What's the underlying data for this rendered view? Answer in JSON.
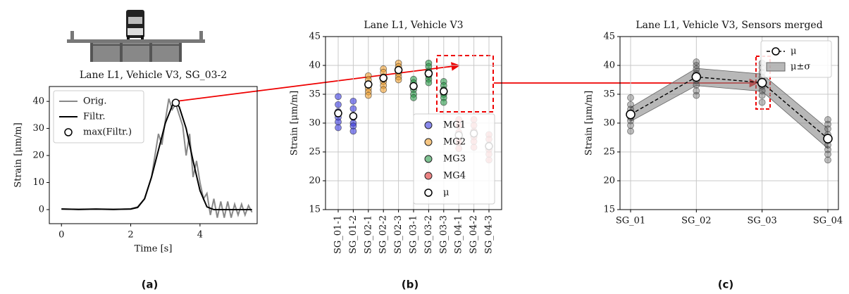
{
  "chart_data": [
    {
      "type": "line",
      "label": "(a)",
      "title": "Lane L1, Vehicle V3, SG_03-2",
      "xlabel": "Time [s]",
      "ylabel": "Strain [μm/m]",
      "xlim": [
        -0.35,
        5.65
      ],
      "xticks": [
        0,
        2,
        4
      ],
      "ylim": [
        -5.2,
        45.5
      ],
      "yticks": [
        0,
        10,
        20,
        30,
        40
      ],
      "grid": false,
      "legend": "upper left",
      "series": [
        {
          "name": "Orig.",
          "color": "#888888",
          "style": "line",
          "x": [
            0,
            0.5,
            1,
            1.5,
            2,
            2.2,
            2.4,
            2.6,
            2.7,
            2.8,
            2.9,
            3.0,
            3.1,
            3.2,
            3.3,
            3.4,
            3.5,
            3.6,
            3.7,
            3.8,
            3.9,
            4.0,
            4.1,
            4.2,
            4.3,
            4.4,
            4.5,
            4.6,
            4.7,
            4.8,
            4.9,
            5.0,
            5.1,
            5.2,
            5.3,
            5.4,
            5.5
          ],
          "values": [
            0.3,
            0,
            0.2,
            0,
            0.3,
            1,
            4,
            12,
            20,
            28,
            24,
            33,
            41,
            37,
            39,
            35,
            31,
            20,
            28,
            12,
            18,
            10,
            4,
            6,
            -2,
            4,
            -3,
            3,
            -3,
            3,
            -3,
            2,
            -2,
            2,
            -2,
            1.5,
            -1
          ]
        },
        {
          "name": "Filtr.",
          "color": "#000000",
          "style": "line",
          "x": [
            0,
            0.5,
            1,
            1.5,
            2,
            2.2,
            2.4,
            2.6,
            2.8,
            3.0,
            3.2,
            3.3,
            3.4,
            3.6,
            3.8,
            4.0,
            4.2,
            4.4,
            4.6,
            5.0,
            5.5
          ],
          "values": [
            0.2,
            0.1,
            0.2,
            0.1,
            0.2,
            0.8,
            4,
            12,
            22,
            32,
            38.5,
            39.5,
            38,
            30,
            18,
            7,
            1,
            0,
            0,
            0,
            0
          ]
        },
        {
          "name": "max(Filtr.)",
          "color": "#000000",
          "style": "marker",
          "x": [
            3.3
          ],
          "values": [
            39.5
          ]
        }
      ]
    },
    {
      "type": "scatter",
      "label": "(b)",
      "title": "Lane L1, Vehicle V3",
      "ylabel": "Strain [μm/m]",
      "categories": [
        "SG_01-1",
        "SG_01-2",
        "SG_02-1",
        "SG_02-2",
        "SG_02-3",
        "SG_03-1",
        "SG_03-2",
        "SG_03-3",
        "SG_04-1",
        "SG_04-2",
        "SG_04-3"
      ],
      "ylim": [
        15,
        45
      ],
      "yticks": [
        15,
        20,
        25,
        30,
        35,
        40,
        45
      ],
      "grid": true,
      "legend": "lower right",
      "series": [
        {
          "name": "MG1",
          "color": "#3a3ae0",
          "style": "points",
          "x": [
            "SG_01-1",
            "SG_01-1",
            "SG_01-1",
            "SG_01-1",
            "SG_01-1",
            "SG_01-1",
            "SG_01-2",
            "SG_01-2",
            "SG_01-2",
            "SG_01-2",
            "SG_01-2",
            "SG_01-2"
          ],
          "values": [
            34.6,
            33.2,
            32,
            31,
            30.2,
            29.2,
            33.8,
            32.5,
            31,
            30,
            29.5,
            28.6
          ]
        },
        {
          "name": "MG2",
          "color": "#f0a030",
          "style": "points",
          "x": [
            "SG_02-1",
            "SG_02-1",
            "SG_02-1",
            "SG_02-1",
            "SG_02-1",
            "SG_02-1",
            "SG_02-2",
            "SG_02-2",
            "SG_02-2",
            "SG_02-2",
            "SG_02-2",
            "SG_02-2",
            "SG_02-3",
            "SG_02-3",
            "SG_02-3",
            "SG_02-3",
            "SG_02-3",
            "SG_02-3"
          ],
          "values": [
            38.2,
            37.5,
            36.8,
            36,
            35.4,
            34.8,
            39.4,
            38.8,
            38,
            37.2,
            36.5,
            35.8,
            40.4,
            39.8,
            39.2,
            38.6,
            38,
            37.5
          ]
        },
        {
          "name": "MG3",
          "color": "#2a9a4a",
          "style": "points",
          "x": [
            "SG_03-1",
            "SG_03-1",
            "SG_03-1",
            "SG_03-1",
            "SG_03-1",
            "SG_03-1",
            "SG_03-2",
            "SG_03-2",
            "SG_03-2",
            "SG_03-2",
            "SG_03-2",
            "SG_03-2",
            "SG_03-3",
            "SG_03-3",
            "SG_03-3",
            "SG_03-3",
            "SG_03-3",
            "SG_03-3"
          ],
          "values": [
            37.6,
            37,
            36.4,
            35.8,
            35,
            34.4,
            40.4,
            39.8,
            39,
            38.2,
            37.6,
            37,
            37.2,
            36.5,
            35.8,
            35,
            34.4,
            33.6
          ]
        },
        {
          "name": "MG4",
          "color": "#e03030",
          "style": "points",
          "x": [
            "SG_04-1",
            "SG_04-1",
            "SG_04-1",
            "SG_04-1",
            "SG_04-1",
            "SG_04-1",
            "SG_04-2",
            "SG_04-2",
            "SG_04-2",
            "SG_04-2",
            "SG_04-2",
            "SG_04-2",
            "SG_04-3",
            "SG_04-3",
            "SG_04-3",
            "SG_04-3",
            "SG_04-3",
            "SG_04-3"
          ],
          "values": [
            30.6,
            29.6,
            28.4,
            27.4,
            26.6,
            25.6,
            30.6,
            29.6,
            28.6,
            27.6,
            26.8,
            25.8,
            28,
            27.2,
            26.2,
            25.4,
            24.6,
            23.6
          ]
        },
        {
          "name": "μ",
          "color": "#000000",
          "style": "marker",
          "values": [
            31.7,
            31.2,
            36.7,
            37.8,
            39.2,
            36.4,
            38.6,
            35.5,
            27.9,
            28.2,
            26.0
          ]
        }
      ]
    },
    {
      "type": "line",
      "label": "(c)",
      "title": "Lane L1, Vehicle V3, Sensors merged",
      "ylabel": "Strain [μm/m]",
      "categories": [
        "SG_01",
        "SG_02",
        "SG_03",
        "SG_04"
      ],
      "ylim": [
        15,
        45
      ],
      "yticks": [
        15,
        20,
        25,
        30,
        35,
        40,
        45
      ],
      "grid": true,
      "legend": "upper right",
      "series": [
        {
          "color": "#444444",
          "style": "points",
          "x": [
            "SG_01",
            "SG_01",
            "SG_01",
            "SG_01",
            "SG_01",
            "SG_01",
            "SG_01",
            "SG_01",
            "SG_02",
            "SG_02",
            "SG_02",
            "SG_02",
            "SG_02",
            "SG_02",
            "SG_02",
            "SG_02",
            "SG_02",
            "SG_03",
            "SG_03",
            "SG_03",
            "SG_03",
            "SG_03",
            "SG_03",
            "SG_03",
            "SG_03",
            "SG_03",
            "SG_04",
            "SG_04",
            "SG_04",
            "SG_04",
            "SG_04",
            "SG_04",
            "SG_04",
            "SG_04",
            "SG_04"
          ],
          "values": [
            34.4,
            33.2,
            32.4,
            31.8,
            31,
            30.4,
            29.6,
            28.6,
            40.6,
            40,
            39.4,
            38.6,
            38,
            37.4,
            36.6,
            35.6,
            34.8,
            40.4,
            39.6,
            38.8,
            38,
            37.2,
            36.4,
            35.6,
            34.8,
            33.6,
            30.6,
            29.8,
            29,
            28,
            27,
            26.2,
            25.4,
            24.6,
            23.6
          ]
        },
        {
          "name": "μ",
          "color": "#000000",
          "style": "line_marker",
          "values": [
            31.5,
            38,
            37,
            27.3
          ]
        },
        {
          "name": "μ±σ",
          "color": "#888888",
          "style": "band",
          "values": [
            1.2,
            1.5,
            1.5,
            1.7
          ]
        }
      ]
    }
  ]
}
